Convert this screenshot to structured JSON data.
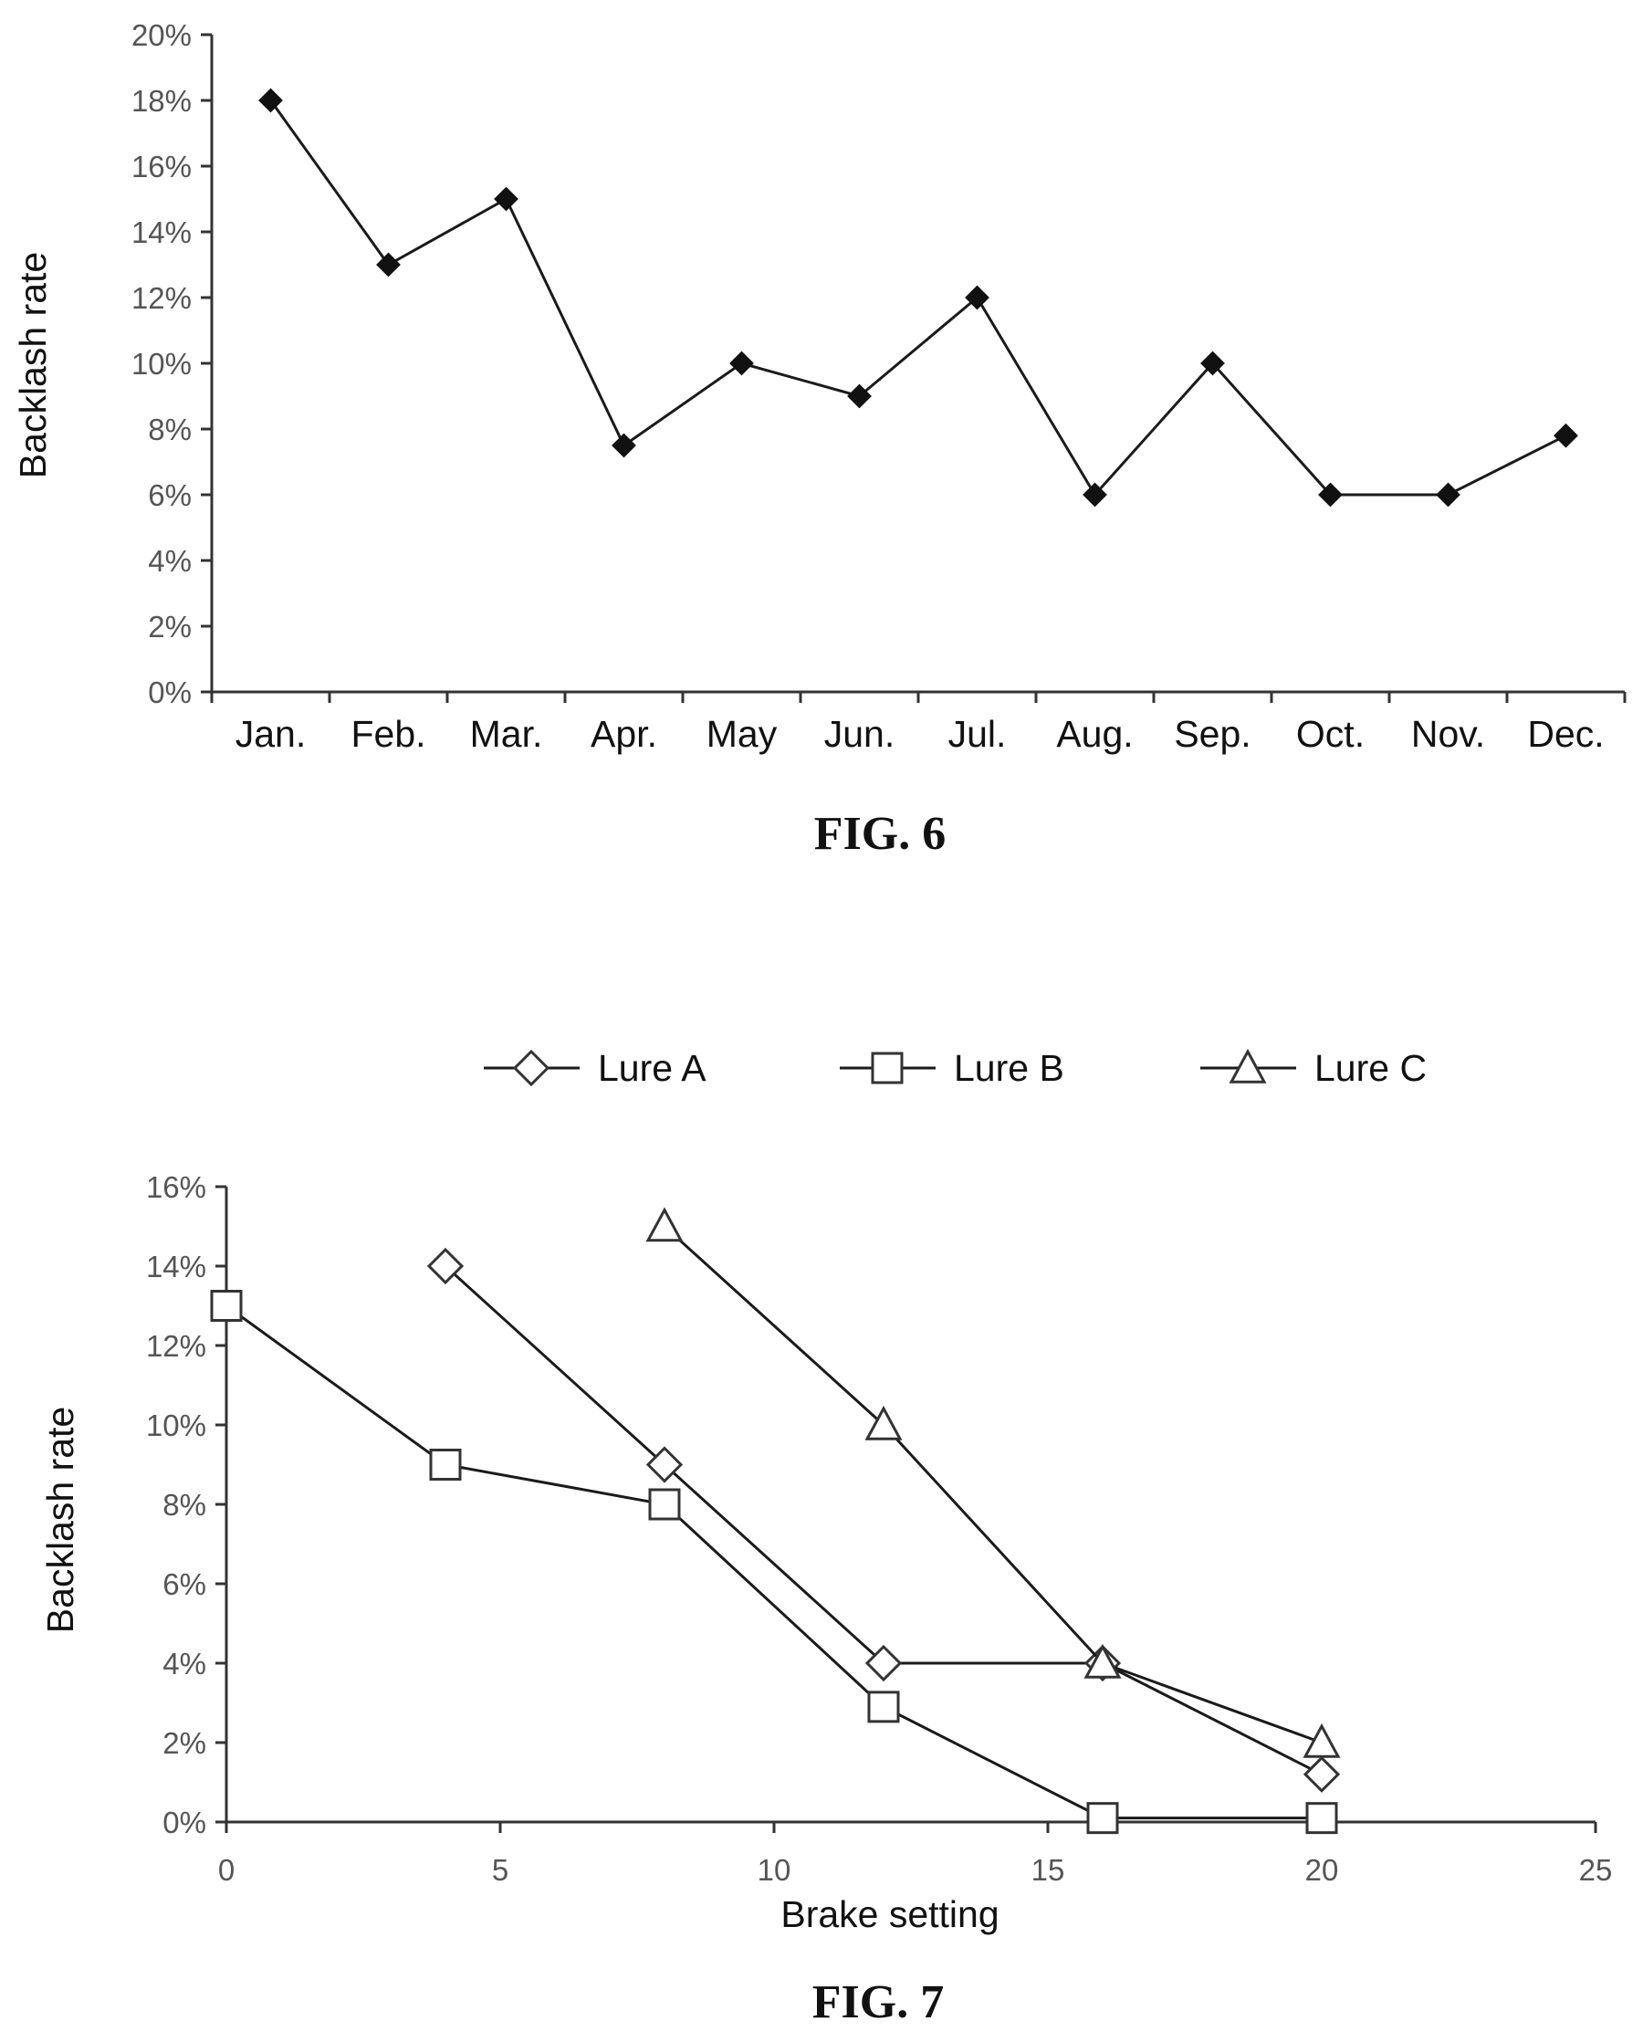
{
  "chart_data": [
    {
      "type": "line",
      "caption": "FIG. 6",
      "ylabel": "Backlash rate",
      "xlabel": "",
      "categories": [
        "Jan.",
        "Feb.",
        "Mar.",
        "Apr.",
        "May",
        "Jun.",
        "Jul.",
        "Aug.",
        "Sep.",
        "Oct.",
        "Nov.",
        "Dec."
      ],
      "series": [
        {
          "marker": "filled-diamond",
          "values": [
            18,
            13,
            15,
            7.5,
            10,
            9,
            12,
            6,
            10,
            6,
            6,
            7.8
          ]
        }
      ],
      "ylim": [
        0,
        20
      ],
      "y_ticks": [
        "0%",
        "2%",
        "4%",
        "6%",
        "8%",
        "10%",
        "12%",
        "14%",
        "16%",
        "18%",
        "20%"
      ],
      "y_unit": "%",
      "grid": false,
      "legend": "none"
    },
    {
      "type": "line",
      "caption": "FIG. 7",
      "xlabel": "Brake setting",
      "ylabel": "Backlash rate",
      "xlim": [
        0,
        25
      ],
      "ylim": [
        0,
        16
      ],
      "x_ticks": [
        "0",
        "5",
        "10",
        "15",
        "20",
        "25"
      ],
      "y_ticks": [
        "0%",
        "2%",
        "4%",
        "6%",
        "8%",
        "10%",
        "12%",
        "14%",
        "16%"
      ],
      "y_unit": "%",
      "grid": false,
      "legend": "top",
      "series": [
        {
          "name": "Lure A",
          "marker": "open-diamond",
          "x": [
            4,
            8,
            12,
            16,
            20
          ],
          "y": [
            14,
            9,
            4,
            4,
            1.2
          ]
        },
        {
          "name": "Lure B",
          "marker": "open-square",
          "x": [
            0,
            4,
            8,
            12,
            16,
            20
          ],
          "y": [
            13,
            9,
            8,
            2.9,
            0.1,
            0.1
          ]
        },
        {
          "name": "Lure C",
          "marker": "open-triangle",
          "x": [
            8,
            12,
            16,
            20
          ],
          "y": [
            15,
            10,
            4,
            2
          ]
        }
      ]
    }
  ]
}
